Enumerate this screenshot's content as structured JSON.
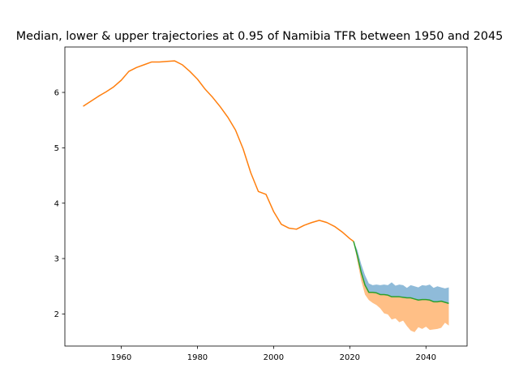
{
  "chart_data": {
    "type": "line",
    "title": "Median, lower & upper trajectories at 0.95 of Namibia TFR between 1950 and 2045",
    "xlabel": "",
    "ylabel": "",
    "xlim": [
      1945.2,
      2050.8
    ],
    "ylim": [
      1.42,
      6.82
    ],
    "x_ticks": [
      1960,
      1980,
      2000,
      2020,
      2040
    ],
    "x_tick_labels": [
      "1960",
      "1980",
      "2000",
      "2020",
      "2040"
    ],
    "y_ticks": [
      2,
      3,
      4,
      5,
      6
    ],
    "y_tick_labels": [
      "2",
      "3",
      "4",
      "5",
      "6"
    ],
    "grid": false,
    "legend": "none",
    "colors": {
      "observed": "#ff7f0e",
      "median": "#2ca02c",
      "upper_band": "#1f77b4",
      "lower_band": "#ff7f0e"
    },
    "series": [
      {
        "role": "observed",
        "x": [
          1950,
          1952,
          1954,
          1956,
          1958,
          1960,
          1962,
          1964,
          1966,
          1968,
          1970,
          1972,
          1974,
          1976,
          1978,
          1980,
          1982,
          1984,
          1986,
          1988,
          1990,
          1992,
          1994,
          1996,
          1998,
          2000,
          2002,
          2004,
          2006,
          2008,
          2010,
          2012,
          2014,
          2016,
          2018,
          2020,
          2021
        ],
        "values": [
          5.75,
          5.84,
          5.93,
          6.01,
          6.1,
          6.22,
          6.38,
          6.45,
          6.5,
          6.55,
          6.55,
          6.56,
          6.57,
          6.5,
          6.38,
          6.24,
          6.06,
          5.91,
          5.74,
          5.55,
          5.32,
          4.98,
          4.55,
          4.21,
          4.16,
          3.85,
          3.62,
          3.55,
          3.53,
          3.6,
          3.65,
          3.69,
          3.65,
          3.58,
          3.48,
          3.36,
          3.31
        ]
      },
      {
        "role": "median",
        "x": [
          2021,
          2022,
          2023,
          2024,
          2025,
          2026,
          2027,
          2028,
          2029,
          2030,
          2031,
          2032,
          2033,
          2034,
          2035,
          2036,
          2037,
          2038,
          2039,
          2040,
          2041,
          2042,
          2043,
          2044,
          2045,
          2046
        ],
        "values": [
          3.31,
          3.05,
          2.75,
          2.52,
          2.39,
          2.39,
          2.38,
          2.35,
          2.35,
          2.34,
          2.31,
          2.31,
          2.31,
          2.3,
          2.29,
          2.29,
          2.27,
          2.25,
          2.26,
          2.26,
          2.25,
          2.22,
          2.22,
          2.23,
          2.21,
          2.19
        ]
      },
      {
        "role": "upper",
        "x": [
          2021,
          2022,
          2023,
          2024,
          2025,
          2026,
          2027,
          2028,
          2029,
          2030,
          2031,
          2032,
          2033,
          2034,
          2035,
          2036,
          2037,
          2038,
          2039,
          2040,
          2041,
          2042,
          2043,
          2044,
          2045,
          2046
        ],
        "values": [
          3.31,
          3.15,
          2.9,
          2.7,
          2.55,
          2.52,
          2.53,
          2.52,
          2.53,
          2.52,
          2.57,
          2.51,
          2.53,
          2.52,
          2.47,
          2.52,
          2.5,
          2.48,
          2.52,
          2.51,
          2.53,
          2.47,
          2.5,
          2.48,
          2.46,
          2.48
        ]
      },
      {
        "role": "lower",
        "x": [
          2021,
          2022,
          2023,
          2024,
          2025,
          2026,
          2027,
          2028,
          2029,
          2030,
          2031,
          2032,
          2033,
          2034,
          2035,
          2036,
          2037,
          2038,
          2039,
          2040,
          2041,
          2042,
          2043,
          2044,
          2045,
          2046
        ],
        "values": [
          3.31,
          2.95,
          2.6,
          2.35,
          2.25,
          2.2,
          2.16,
          2.1,
          2.01,
          1.99,
          1.9,
          1.92,
          1.85,
          1.88,
          1.78,
          1.7,
          1.67,
          1.76,
          1.73,
          1.77,
          1.71,
          1.72,
          1.73,
          1.75,
          1.84,
          1.79
        ]
      }
    ]
  }
}
